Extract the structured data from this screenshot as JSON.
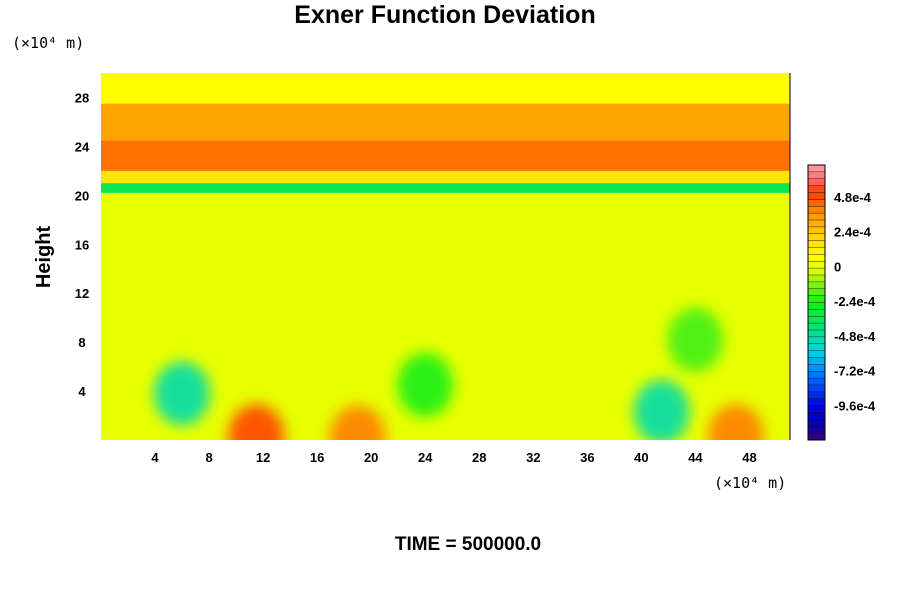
{
  "chart_data": {
    "type": "heatmap",
    "title": "Exner Function Deviation",
    "ylabel": "Height",
    "x_unit": "(×10⁴ m)",
    "y_unit": "(×10⁴ m)",
    "xlim": [
      0,
      51
    ],
    "ylim": [
      0,
      30
    ],
    "x_ticks": [
      "4",
      "8",
      "12",
      "16",
      "20",
      "24",
      "28",
      "32",
      "36",
      "40",
      "44",
      "48"
    ],
    "y_ticks": [
      "4",
      "8",
      "12",
      "16",
      "20",
      "24",
      "28"
    ],
    "colorbar": {
      "min": -0.0012,
      "max": 0.0007,
      "tick_labels": [
        "4.8e-4",
        "2.4e-4",
        "0",
        "-2.4e-4",
        "-4.8e-4",
        "-7.2e-4",
        "-9.6e-4"
      ],
      "tick_values": [
        0.00048,
        0.00024,
        0,
        -0.00024,
        -0.00048,
        -0.00072,
        -0.00096
      ]
    },
    "field_bands": [
      {
        "y_from": 0,
        "y_to": 20.2,
        "value": 0.0
      },
      {
        "y_from": 20.2,
        "y_to": 21.0,
        "value": -0.00035
      },
      {
        "y_from": 21.0,
        "y_to": 22.0,
        "value": 0.00015
      },
      {
        "y_from": 22.0,
        "y_to": 24.5,
        "value": 0.00042
      },
      {
        "y_from": 24.5,
        "y_to": 27.5,
        "value": 0.00032
      },
      {
        "y_from": 27.5,
        "y_to": 30,
        "value": 8e-05
      }
    ],
    "features": [
      {
        "x": 6,
        "y": 3.8,
        "value": -0.0005
      },
      {
        "x": 41.5,
        "y": 2.3,
        "value": -0.0005
      },
      {
        "x": 11.5,
        "y": 0.3,
        "value": 0.0005
      },
      {
        "x": 19,
        "y": 0.2,
        "value": 0.0004
      },
      {
        "x": 24,
        "y": 4.5,
        "value": -0.00025
      },
      {
        "x": 47,
        "y": 0.3,
        "value": 0.0004
      },
      {
        "x": 44,
        "y": 8.2,
        "value": -0.0002
      }
    ],
    "time_label": "TIME = 500000.0"
  }
}
